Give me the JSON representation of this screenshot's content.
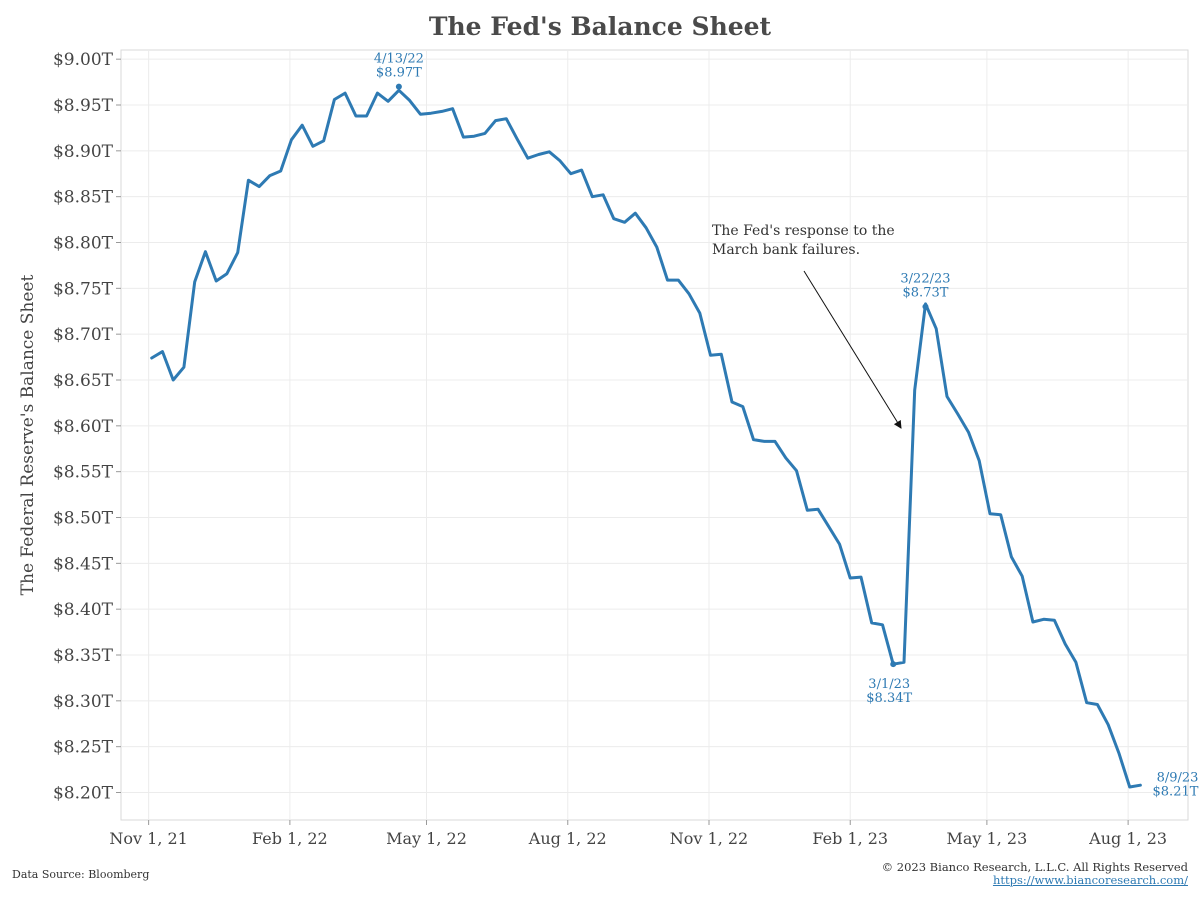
{
  "chart_data": {
    "type": "line",
    "title": "The Fed's Balance Sheet",
    "ylabel": "The Federal Reserve's Balance Sheet",
    "xlabel": "",
    "ylim": [
      8.17,
      9.01
    ],
    "yticks": [
      9.0,
      8.95,
      8.9,
      8.85,
      8.8,
      8.75,
      8.7,
      8.65,
      8.6,
      8.55,
      8.5,
      8.45,
      8.4,
      8.35,
      8.3,
      8.25,
      8.2
    ],
    "ytick_labels": [
      "$9.00T",
      "$8.95T",
      "$8.90T",
      "$8.85T",
      "$8.80T",
      "$8.75T",
      "$8.70T",
      "$8.65T",
      "$8.60T",
      "$8.55T",
      "$8.50T",
      "$8.45T",
      "$8.40T",
      "$8.35T",
      "$8.30T",
      "$8.25T",
      "$8.20T"
    ],
    "x_range": [
      "2021-10-14",
      "2023-09-09"
    ],
    "xticks": [
      {
        "date": "2021-11-01",
        "label": "Nov 1, 21"
      },
      {
        "date": "2022-02-01",
        "label": "Feb 1, 22"
      },
      {
        "date": "2022-05-01",
        "label": "May 1, 22"
      },
      {
        "date": "2022-08-01",
        "label": "Aug 1, 22"
      },
      {
        "date": "2022-11-01",
        "label": "Nov 1, 22"
      },
      {
        "date": "2023-02-01",
        "label": "Feb 1, 23"
      },
      {
        "date": "2023-05-01",
        "label": "May 1, 23"
      },
      {
        "date": "2023-08-01",
        "label": "Aug 1, 23"
      }
    ],
    "grid": true,
    "line_color": "#2e7ab3",
    "series": [
      {
        "points": [
          [
            "2021-11-03",
            8.674
          ],
          [
            "2021-11-10",
            8.681
          ],
          [
            "2021-11-17",
            8.65
          ],
          [
            "2021-11-24",
            8.664
          ],
          [
            "2021-12-01",
            8.757
          ],
          [
            "2021-12-08",
            8.79
          ],
          [
            "2021-12-15",
            8.758
          ],
          [
            "2021-12-22",
            8.766
          ],
          [
            "2021-12-29",
            8.789
          ],
          [
            "2022-01-05",
            8.868
          ],
          [
            "2022-01-12",
            8.861
          ],
          [
            "2022-01-19",
            8.873
          ],
          [
            "2022-01-26",
            8.878
          ],
          [
            "2022-02-02",
            8.912
          ],
          [
            "2022-02-09",
            8.928
          ],
          [
            "2022-02-16",
            8.905
          ],
          [
            "2022-02-23",
            8.911
          ],
          [
            "2022-03-02",
            8.956
          ],
          [
            "2022-03-09",
            8.963
          ],
          [
            "2022-03-16",
            8.938
          ],
          [
            "2022-03-23",
            8.938
          ],
          [
            "2022-03-30",
            8.963
          ],
          [
            "2022-04-06",
            8.954
          ],
          [
            "2022-04-13",
            8.966
          ],
          [
            "2022-04-20",
            8.955
          ],
          [
            "2022-04-27",
            8.94
          ],
          [
            "2022-05-04",
            8.941
          ],
          [
            "2022-05-11",
            8.943
          ],
          [
            "2022-05-18",
            8.946
          ],
          [
            "2022-05-25",
            8.915
          ],
          [
            "2022-06-01",
            8.916
          ],
          [
            "2022-06-08",
            8.919
          ],
          [
            "2022-06-15",
            8.933
          ],
          [
            "2022-06-22",
            8.935
          ],
          [
            "2022-06-29",
            8.913
          ],
          [
            "2022-07-06",
            8.892
          ],
          [
            "2022-07-13",
            8.896
          ],
          [
            "2022-07-20",
            8.899
          ],
          [
            "2022-07-27",
            8.889
          ],
          [
            "2022-08-03",
            8.875
          ],
          [
            "2022-08-10",
            8.879
          ],
          [
            "2022-08-17",
            8.85
          ],
          [
            "2022-08-24",
            8.852
          ],
          [
            "2022-08-31",
            8.826
          ],
          [
            "2022-09-07",
            8.822
          ],
          [
            "2022-09-14",
            8.832
          ],
          [
            "2022-09-21",
            8.816
          ],
          [
            "2022-09-28",
            8.795
          ],
          [
            "2022-10-05",
            8.759
          ],
          [
            "2022-10-12",
            8.759
          ],
          [
            "2022-10-19",
            8.744
          ],
          [
            "2022-10-26",
            8.723
          ],
          [
            "2022-11-02",
            8.677
          ],
          [
            "2022-11-09",
            8.678
          ],
          [
            "2022-11-16",
            8.626
          ],
          [
            "2022-11-23",
            8.621
          ],
          [
            "2022-11-30",
            8.585
          ],
          [
            "2022-12-07",
            8.583
          ],
          [
            "2022-12-14",
            8.583
          ],
          [
            "2022-12-21",
            8.565
          ],
          [
            "2022-12-28",
            8.551
          ],
          [
            "2023-01-04",
            8.508
          ],
          [
            "2023-01-11",
            8.509
          ],
          [
            "2023-01-18",
            8.49
          ],
          [
            "2023-01-25",
            8.471
          ],
          [
            "2023-02-01",
            8.434
          ],
          [
            "2023-02-08",
            8.435
          ],
          [
            "2023-02-15",
            8.385
          ],
          [
            "2023-02-22",
            8.383
          ],
          [
            "2023-03-01",
            8.34
          ],
          [
            "2023-03-08",
            8.342
          ],
          [
            "2023-03-15",
            8.639
          ],
          [
            "2023-03-22",
            8.733
          ],
          [
            "2023-03-29",
            8.706
          ],
          [
            "2023-04-05",
            8.632
          ],
          [
            "2023-04-12",
            8.613
          ],
          [
            "2023-04-19",
            8.593
          ],
          [
            "2023-04-26",
            8.562
          ],
          [
            "2023-05-03",
            8.504
          ],
          [
            "2023-05-10",
            8.503
          ],
          [
            "2023-05-17",
            8.457
          ],
          [
            "2023-05-24",
            8.436
          ],
          [
            "2023-05-31",
            8.386
          ],
          [
            "2023-06-07",
            8.389
          ],
          [
            "2023-06-14",
            8.388
          ],
          [
            "2023-06-21",
            8.362
          ],
          [
            "2023-06-28",
            8.342
          ],
          [
            "2023-07-05",
            8.298
          ],
          [
            "2023-07-12",
            8.296
          ],
          [
            "2023-07-19",
            8.274
          ],
          [
            "2023-07-26",
            8.243
          ],
          [
            "2023-08-02",
            8.206
          ],
          [
            "2023-08-09",
            8.208
          ]
        ]
      }
    ],
    "annotations": [
      {
        "date": "2022-04-13",
        "value": 8.97,
        "label_date": "4/13/22",
        "label_value": "$8.97T",
        "position": "above"
      },
      {
        "date": "2023-03-01",
        "value": 8.34,
        "label_date": "3/1/23",
        "label_value": "$8.34T",
        "position": "below"
      },
      {
        "date": "2023-03-22",
        "value": 8.73,
        "label_date": "3/22/23",
        "label_value": "$8.73T",
        "position": "above"
      },
      {
        "date": "2023-08-09",
        "value": 8.21,
        "label_date": "8/9/23",
        "label_value": "$8.21T",
        "position": "right"
      }
    ],
    "callout": {
      "lines": [
        "The Fed's response to the",
        "March bank failures."
      ]
    }
  },
  "footer": {
    "source": "Data Source: Bloomberg",
    "copyright": "© 2023 Bianco Research, L.L.C. All Rights Reserved",
    "url": "https://www.biancoresearch.com/"
  }
}
